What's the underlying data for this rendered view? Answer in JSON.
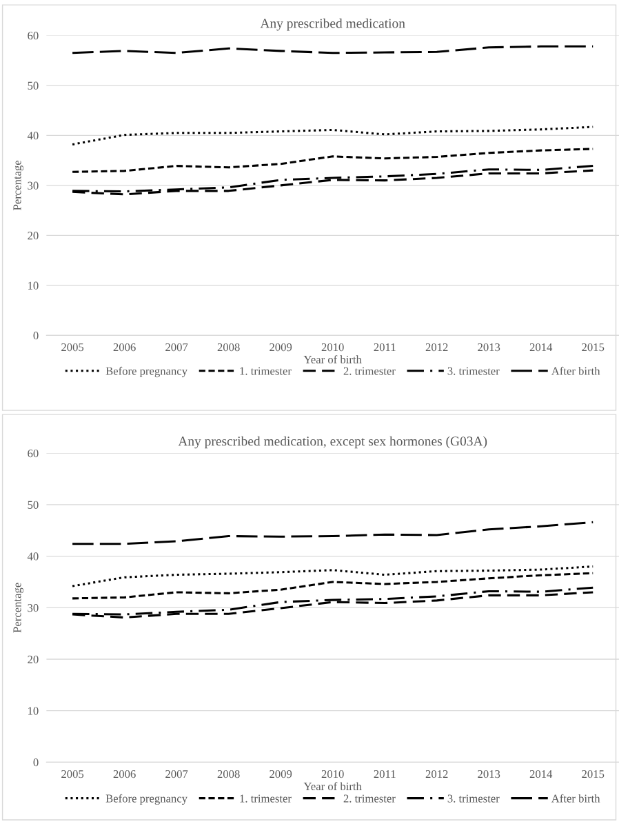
{
  "chart_data": [
    {
      "type": "line",
      "title": "Any prescribed medication",
      "xlabel": "Year of birth",
      "ylabel": "Percentage",
      "categories": [
        "2005",
        "2006",
        "2007",
        "2008",
        "2009",
        "2010",
        "2011",
        "2012",
        "2013",
        "2014",
        "2015"
      ],
      "ylim": [
        0,
        60
      ],
      "yticks": [
        0,
        10,
        20,
        30,
        40,
        50,
        60
      ],
      "grid": "y",
      "legend": "bottom",
      "series": [
        {
          "name": "Before pregnancy",
          "color": "#000000",
          "line_style": "dotted",
          "values": [
            38.2,
            40.1,
            40.5,
            40.5,
            40.8,
            41.1,
            40.2,
            40.8,
            40.9,
            41.2,
            41.7
          ]
        },
        {
          "name": "1. trimester",
          "color": "#000000",
          "line_style": "dashed",
          "values": [
            32.7,
            32.9,
            33.9,
            33.6,
            34.3,
            35.8,
            35.4,
            35.7,
            36.5,
            37.0,
            37.3
          ]
        },
        {
          "name": "2. trimester",
          "color": "#000000",
          "line_style": "dashed",
          "values": [
            28.7,
            28.2,
            28.9,
            28.9,
            30.0,
            31.1,
            31.0,
            31.5,
            32.4,
            32.4,
            33.0
          ]
        },
        {
          "name": "3. trimester",
          "color": "#000000",
          "line_style": "dashed",
          "values": [
            28.9,
            28.8,
            29.2,
            29.6,
            31.1,
            31.5,
            31.8,
            32.3,
            33.2,
            33.1,
            33.9
          ]
        },
        {
          "name": "After birth",
          "color": "#000000",
          "line_style": "dashed",
          "values": [
            56.5,
            56.9,
            56.5,
            57.4,
            56.9,
            56.5,
            56.6,
            56.7,
            57.6,
            57.8,
            57.8
          ]
        }
      ]
    },
    {
      "type": "line",
      "title": "Any prescribed medication, except sex hormones (G03A)",
      "xlabel": "Year of birth",
      "ylabel": "Percentage",
      "categories": [
        "2005",
        "2006",
        "2007",
        "2008",
        "2009",
        "2010",
        "2011",
        "2012",
        "2013",
        "2014",
        "2015"
      ],
      "ylim": [
        0,
        60
      ],
      "yticks": [
        0,
        10,
        20,
        30,
        40,
        50,
        60
      ],
      "grid": "y",
      "legend": "bottom",
      "series": [
        {
          "name": "Before pregnancy",
          "color": "#000000",
          "line_style": "dotted",
          "values": [
            34.2,
            35.9,
            36.4,
            36.6,
            36.9,
            37.3,
            36.4,
            37.1,
            37.2,
            37.4,
            38.0
          ]
        },
        {
          "name": "1. trimester",
          "color": "#000000",
          "line_style": "dashed",
          "values": [
            31.8,
            32.0,
            33.0,
            32.8,
            33.5,
            35.0,
            34.6,
            35.0,
            35.7,
            36.3,
            36.7
          ]
        },
        {
          "name": "2. trimester",
          "color": "#000000",
          "line_style": "dashed",
          "values": [
            28.7,
            28.1,
            28.8,
            28.8,
            29.9,
            31.1,
            30.9,
            31.4,
            32.4,
            32.4,
            33.0
          ]
        },
        {
          "name": "3. trimester",
          "color": "#000000",
          "line_style": "dashed",
          "values": [
            28.8,
            28.7,
            29.2,
            29.6,
            31.1,
            31.5,
            31.7,
            32.2,
            33.2,
            33.1,
            33.9
          ]
        },
        {
          "name": "After birth",
          "color": "#000000",
          "line_style": "dashed",
          "values": [
            42.4,
            42.4,
            42.9,
            43.9,
            43.8,
            43.9,
            44.2,
            44.1,
            45.2,
            45.8,
            46.6
          ]
        }
      ]
    }
  ]
}
